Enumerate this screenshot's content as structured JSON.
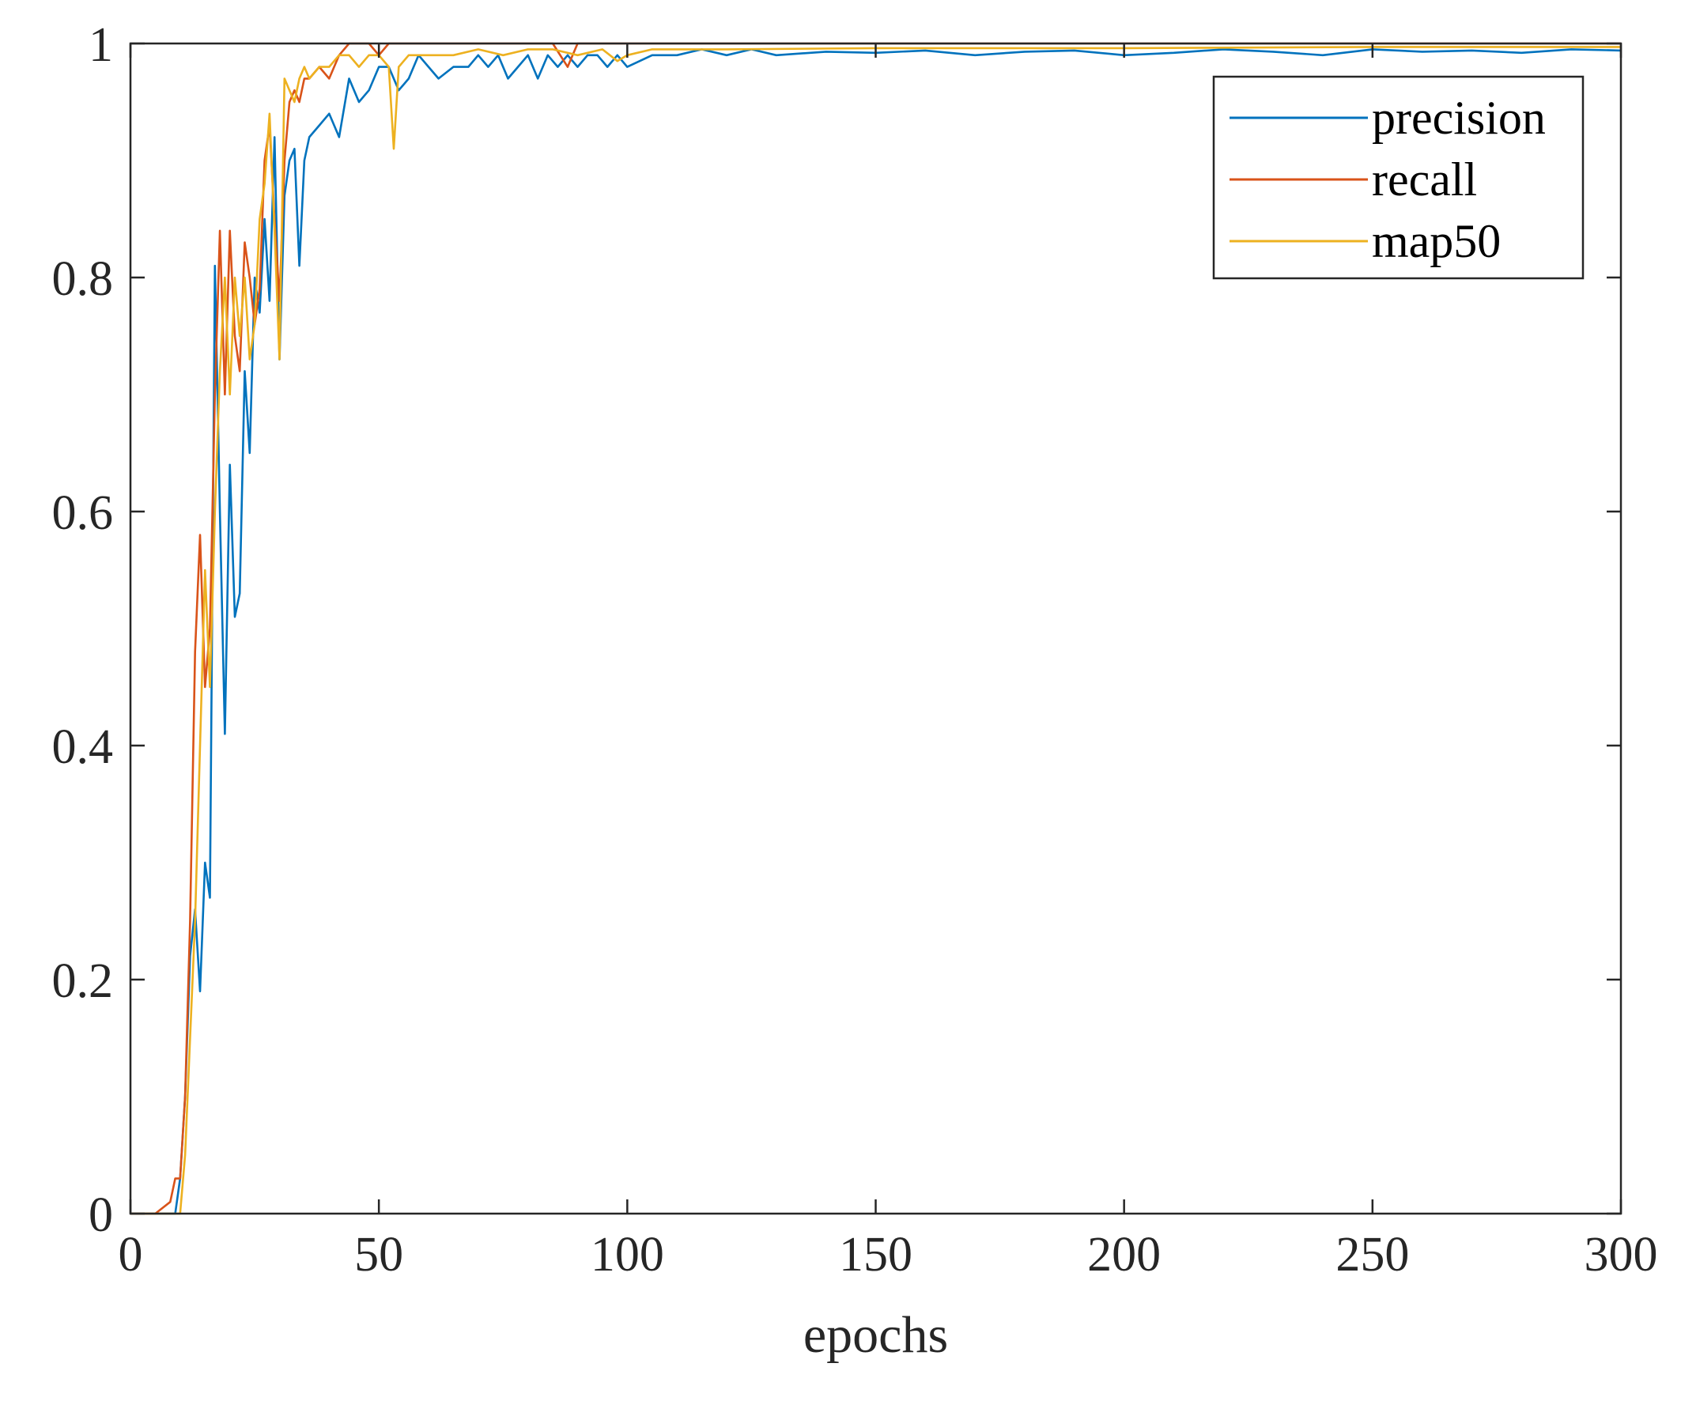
{
  "chart_data": {
    "type": "line",
    "title": "",
    "xlabel": "epochs",
    "ylabel": "",
    "xlim": [
      0,
      300
    ],
    "ylim": [
      0,
      1
    ],
    "xticks": [
      0,
      50,
      100,
      150,
      200,
      250,
      300
    ],
    "xtick_labels": [
      "0",
      "50",
      "100",
      "150",
      "200",
      "250",
      "300"
    ],
    "yticks": [
      0,
      0.2,
      0.4,
      0.6,
      0.8,
      1
    ],
    "ytick_labels": [
      "0",
      "0.2",
      "0.4",
      "0.6",
      "0.8",
      "1"
    ],
    "grid": false,
    "legend_position": "top-right",
    "series": [
      {
        "name": "precision",
        "color": "#0072BD",
        "x": [
          0,
          5,
          9,
          10,
          11,
          12,
          13,
          14,
          15,
          16,
          17,
          18,
          19,
          20,
          21,
          22,
          23,
          24,
          25,
          26,
          27,
          28,
          29,
          30,
          31,
          32,
          33,
          34,
          35,
          36,
          38,
          40,
          42,
          44,
          46,
          48,
          50,
          52,
          54,
          56,
          58,
          60,
          62,
          65,
          68,
          70,
          72,
          74,
          76,
          78,
          80,
          82,
          84,
          86,
          88,
          90,
          92,
          94,
          96,
          98,
          100,
          105,
          110,
          115,
          120,
          125,
          130,
          140,
          150,
          160,
          170,
          180,
          190,
          200,
          210,
          220,
          230,
          240,
          250,
          260,
          270,
          280,
          290,
          300
        ],
        "values": [
          0,
          0,
          0,
          0.03,
          0.1,
          0.22,
          0.26,
          0.19,
          0.3,
          0.27,
          0.81,
          0.6,
          0.41,
          0.64,
          0.51,
          0.53,
          0.72,
          0.65,
          0.8,
          0.77,
          0.85,
          0.78,
          0.92,
          0.73,
          0.87,
          0.9,
          0.91,
          0.81,
          0.9,
          0.92,
          0.93,
          0.94,
          0.92,
          0.97,
          0.95,
          0.96,
          0.98,
          0.98,
          0.96,
          0.97,
          0.99,
          0.98,
          0.97,
          0.98,
          0.98,
          0.99,
          0.98,
          0.99,
          0.97,
          0.98,
          0.99,
          0.97,
          0.99,
          0.98,
          0.99,
          0.98,
          0.99,
          0.99,
          0.98,
          0.99,
          0.98,
          0.99,
          0.99,
          0.995,
          0.99,
          0.995,
          0.99,
          0.993,
          0.992,
          0.994,
          0.99,
          0.993,
          0.994,
          0.99,
          0.992,
          0.995,
          0.993,
          0.99,
          0.995,
          0.993,
          0.994,
          0.992,
          0.995,
          0.994
        ]
      },
      {
        "name": "recall",
        "color": "#D95319",
        "x": [
          0,
          5,
          8,
          9,
          10,
          11,
          12,
          13,
          14,
          15,
          16,
          17,
          18,
          19,
          20,
          21,
          22,
          23,
          24,
          25,
          26,
          27,
          28,
          29,
          30,
          31,
          32,
          33,
          34,
          35,
          36,
          38,
          40,
          42,
          44,
          46,
          48,
          50,
          52,
          54,
          56,
          60,
          65,
          70,
          75,
          80,
          85,
          88,
          90,
          95,
          100,
          110,
          120,
          150,
          200,
          250,
          300
        ],
        "values": [
          0,
          0,
          0.01,
          0.03,
          0.03,
          0.1,
          0.25,
          0.48,
          0.58,
          0.45,
          0.5,
          0.7,
          0.84,
          0.7,
          0.84,
          0.75,
          0.72,
          0.83,
          0.8,
          0.76,
          0.79,
          0.9,
          0.93,
          0.85,
          0.78,
          0.9,
          0.95,
          0.96,
          0.95,
          0.97,
          0.97,
          0.98,
          0.97,
          0.99,
          1,
          1,
          1,
          0.99,
          1,
          1,
          1,
          1,
          1,
          1,
          1,
          1,
          1,
          0.98,
          1,
          1,
          1,
          1,
          1,
          1,
          1,
          1,
          1
        ]
      },
      {
        "name": "map50",
        "color": "#EDB120",
        "x": [
          0,
          5,
          9,
          10,
          11,
          12,
          13,
          14,
          15,
          16,
          17,
          18,
          19,
          20,
          21,
          22,
          23,
          24,
          25,
          26,
          27,
          28,
          29,
          30,
          31,
          32,
          33,
          34,
          35,
          36,
          38,
          40,
          42,
          44,
          46,
          48,
          50,
          52,
          53,
          54,
          56,
          58,
          60,
          65,
          70,
          75,
          80,
          85,
          90,
          95,
          98,
          100,
          105,
          110,
          120,
          150,
          200,
          250,
          300
        ],
        "values": [
          0,
          0,
          0,
          0,
          0.05,
          0.15,
          0.25,
          0.4,
          0.55,
          0.45,
          0.6,
          0.72,
          0.8,
          0.7,
          0.8,
          0.75,
          0.8,
          0.73,
          0.76,
          0.85,
          0.88,
          0.94,
          0.84,
          0.73,
          0.97,
          0.96,
          0.95,
          0.97,
          0.98,
          0.97,
          0.98,
          0.98,
          0.99,
          0.99,
          0.98,
          0.99,
          0.99,
          0.98,
          0.91,
          0.98,
          0.99,
          0.99,
          0.99,
          0.99,
          0.995,
          0.99,
          0.995,
          0.995,
          0.99,
          0.995,
          0.985,
          0.99,
          0.995,
          0.995,
          0.995,
          0.996,
          0.996,
          0.997,
          0.997
        ]
      }
    ]
  }
}
